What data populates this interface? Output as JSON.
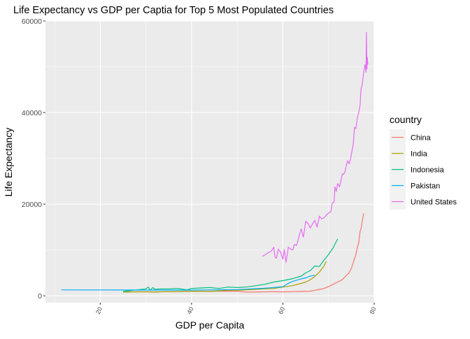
{
  "chart_data": {
    "type": "line",
    "title": "Life Expectancy vs GDP per Captia for Top 5 Most Populated Countries",
    "xlabel": "GDP per Capita",
    "ylabel": "Life Expectancy",
    "xlim": [
      8,
      80
    ],
    "ylim": [
      -1500,
      60000
    ],
    "xticks": [
      20,
      40,
      60,
      80
    ],
    "yticks": [
      0,
      20000,
      40000,
      60000
    ],
    "grid": true,
    "legend": {
      "title": "country",
      "position": "right"
    },
    "series": [
      {
        "name": "China",
        "color": "#F8766D",
        "points": [
          [
            25.5,
            900
          ],
          [
            30,
            850
          ],
          [
            35,
            900
          ],
          [
            40,
            950
          ],
          [
            45,
            1000
          ],
          [
            50,
            1000
          ],
          [
            52,
            800
          ],
          [
            55,
            850
          ],
          [
            58,
            900
          ],
          [
            60,
            850
          ],
          [
            62,
            900
          ],
          [
            64,
            950
          ],
          [
            66,
            1000
          ],
          [
            67,
            1200
          ],
          [
            68,
            1400
          ],
          [
            69,
            1600
          ],
          [
            70,
            2000
          ],
          [
            71,
            2500
          ],
          [
            72,
            3000
          ],
          [
            73,
            3500
          ],
          [
            73.7,
            4200
          ],
          [
            74.5,
            5000
          ],
          [
            75,
            6000
          ],
          [
            75.5,
            7500
          ],
          [
            76,
            9000
          ],
          [
            76.3,
            10500
          ],
          [
            76.6,
            11500
          ],
          [
            76.9,
            14000
          ],
          [
            77.2,
            15000
          ],
          [
            77.5,
            17000
          ],
          [
            77.7,
            18000
          ]
        ]
      },
      {
        "name": "India",
        "color": "#A3A500",
        "points": [
          [
            25,
            800
          ],
          [
            27,
            850
          ],
          [
            30,
            900
          ],
          [
            32,
            800
          ],
          [
            34,
            900
          ],
          [
            36,
            900
          ],
          [
            38,
            950
          ],
          [
            40,
            1000
          ],
          [
            42,
            1000
          ],
          [
            44,
            950
          ],
          [
            46,
            1100
          ],
          [
            48,
            1200
          ],
          [
            50,
            1200
          ],
          [
            52,
            1300
          ],
          [
            54,
            1400
          ],
          [
            56,
            1500
          ],
          [
            58,
            1600
          ],
          [
            60,
            1900
          ],
          [
            62,
            2200
          ],
          [
            64,
            2700
          ],
          [
            65,
            3000
          ],
          [
            66,
            3500
          ],
          [
            67,
            4200
          ],
          [
            68,
            5200
          ],
          [
            69,
            6500
          ],
          [
            69.5,
            7500
          ]
        ]
      },
      {
        "name": "Indonesia",
        "color": "#00BF7D",
        "points": [
          [
            25,
            950
          ],
          [
            28,
            1300
          ],
          [
            30,
            1500
          ],
          [
            30.5,
            1900
          ],
          [
            31,
            1200
          ],
          [
            31.5,
            1800
          ],
          [
            32,
            1400
          ],
          [
            33,
            1500
          ],
          [
            35,
            1500
          ],
          [
            37,
            1600
          ],
          [
            39,
            1300
          ],
          [
            40,
            1600
          ],
          [
            42,
            1700
          ],
          [
            44,
            1800
          ],
          [
            46,
            1600
          ],
          [
            48,
            1900
          ],
          [
            50,
            1800
          ],
          [
            52,
            1900
          ],
          [
            54,
            2200
          ],
          [
            56,
            2500
          ],
          [
            58,
            3000
          ],
          [
            60,
            3300
          ],
          [
            62,
            3700
          ],
          [
            64,
            4300
          ],
          [
            65,
            5000
          ],
          [
            66,
            5500
          ],
          [
            67,
            6500
          ],
          [
            68,
            6400
          ],
          [
            69,
            7800
          ],
          [
            70,
            9000
          ],
          [
            71,
            10500
          ],
          [
            72,
            12400
          ]
        ]
      },
      {
        "name": "Pakistan",
        "color": "#00B0F6",
        "points": [
          [
            11.5,
            1300
          ],
          [
            15,
            1280
          ],
          [
            20,
            1270
          ],
          [
            25,
            1260
          ],
          [
            30,
            1250
          ],
          [
            35,
            1240
          ],
          [
            40,
            1250
          ],
          [
            45,
            1300
          ],
          [
            50,
            1350
          ],
          [
            52,
            1450
          ],
          [
            54,
            1550
          ],
          [
            56,
            1650
          ],
          [
            58,
            1800
          ],
          [
            60,
            2000
          ],
          [
            61,
            2600
          ],
          [
            62,
            3100
          ],
          [
            63,
            3400
          ],
          [
            64,
            3700
          ],
          [
            65,
            3900
          ],
          [
            66,
            4300
          ],
          [
            67,
            4500
          ]
        ]
      },
      {
        "name": "United States",
        "color": "#E76BF3",
        "points": [
          [
            55.5,
            8600
          ],
          [
            56.5,
            9200
          ],
          [
            57.5,
            9800
          ],
          [
            58,
            10600
          ],
          [
            58.3,
            8400
          ],
          [
            58.6,
            8200
          ],
          [
            59,
            10200
          ],
          [
            59.5,
            9500
          ],
          [
            60,
            8000
          ],
          [
            60.3,
            10100
          ],
          [
            60.7,
            7300
          ],
          [
            61.2,
            10600
          ],
          [
            61.7,
            10200
          ],
          [
            62.2,
            10000
          ],
          [
            62.5,
            11200
          ],
          [
            63,
            11000
          ],
          [
            63.5,
            12800
          ],
          [
            64,
            14600
          ],
          [
            64.5,
            12800
          ],
          [
            65,
            16300
          ],
          [
            65.5,
            15800
          ],
          [
            66,
            14800
          ],
          [
            66.5,
            15700
          ],
          [
            67,
            16500
          ],
          [
            67.5,
            15000
          ],
          [
            68,
            17400
          ],
          [
            68.5,
            16800
          ],
          [
            69,
            17000
          ],
          [
            69.5,
            17600
          ],
          [
            70,
            18100
          ],
          [
            70.5,
            18300
          ],
          [
            70.8,
            20200
          ],
          [
            71.2,
            20500
          ],
          [
            71.4,
            23800
          ],
          [
            71.7,
            22800
          ],
          [
            72,
            24500
          ],
          [
            72.4,
            23800
          ],
          [
            72.7,
            25000
          ],
          [
            73,
            26600
          ],
          [
            73.3,
            26500
          ],
          [
            73.6,
            27100
          ],
          [
            73.9,
            28500
          ],
          [
            74.2,
            29500
          ],
          [
            74.5,
            28800
          ],
          [
            74.8,
            29800
          ],
          [
            75.1,
            31400
          ],
          [
            75.4,
            33000
          ],
          [
            75.7,
            36800
          ],
          [
            76,
            36500
          ],
          [
            76.3,
            38800
          ],
          [
            76.6,
            39900
          ],
          [
            76.9,
            41500
          ],
          [
            77.1,
            45000
          ],
          [
            77.4,
            46200
          ],
          [
            77.7,
            48800
          ],
          [
            78,
            50500
          ],
          [
            78.2,
            48800
          ],
          [
            78.3,
            57500
          ],
          [
            78.4,
            49500
          ],
          [
            78.5,
            52000
          ],
          [
            78.6,
            50500
          ]
        ]
      }
    ]
  }
}
